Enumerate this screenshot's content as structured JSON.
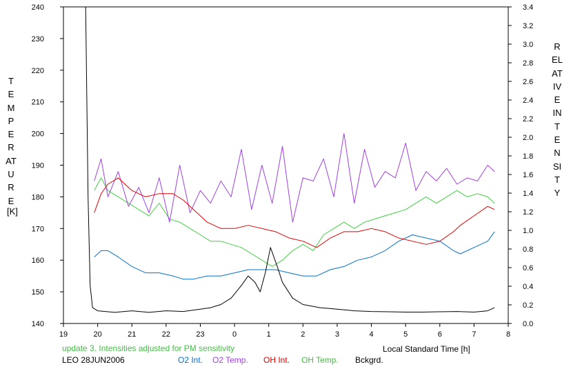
{
  "chart_data": {
    "type": "line",
    "title": "",
    "xlabel": "Local Standard Time [h]",
    "ylabel_left": "TEMPERATURE",
    "ylabel_left_unit": "[K]",
    "ylabel_right": "RELATIVE  INTENSITY",
    "xlim": [
      19,
      32
    ],
    "ylim_left": [
      140,
      240
    ],
    "ylim_right": [
      0.0,
      3.4
    ],
    "x_ticks": [
      "19",
      "20",
      "21",
      "22",
      "23",
      "0",
      "1",
      "2",
      "3",
      "4",
      "5",
      "6",
      "7",
      "8"
    ],
    "y_left_ticks": [
      "140",
      "150",
      "160",
      "170",
      "180",
      "190",
      "200",
      "210",
      "220",
      "230",
      "240"
    ],
    "y_right_ticks": [
      "0.0",
      "0.2",
      "0.4",
      "0.6",
      "0.8",
      "1.0",
      "1.2",
      "1.4",
      "1.6",
      "1.8",
      "2.0",
      "2.2",
      "2.4",
      "2.6",
      "2.8",
      "3.0",
      "3.2",
      "3.4"
    ],
    "grid": false,
    "series": [
      {
        "name": "O2 Int.",
        "color": "#0070d0",
        "axis": "left",
        "x": [
          19.9,
          20.1,
          20.3,
          20.6,
          21.0,
          21.4,
          21.8,
          22.2,
          22.5,
          22.8,
          23.2,
          23.6,
          24.0,
          24.4,
          24.8,
          25.2,
          25.6,
          26.0,
          26.4,
          26.8,
          27.2,
          27.6,
          28.0,
          28.4,
          28.8,
          29.2,
          29.6,
          30.0,
          30.4,
          30.6,
          31.0,
          31.4,
          31.6
        ],
        "y": [
          161,
          163,
          163,
          161,
          158,
          156,
          156,
          155,
          154,
          154,
          155,
          155,
          156,
          157,
          157,
          157,
          156,
          155,
          155,
          157,
          158,
          160,
          161,
          163,
          166,
          168,
          167,
          166,
          163,
          162,
          164,
          166,
          169
        ]
      },
      {
        "name": "O2 Temp.",
        "color": "#a040e0",
        "axis": "left",
        "x": [
          19.9,
          20.1,
          20.3,
          20.6,
          20.9,
          21.2,
          21.5,
          21.8,
          22.1,
          22.4,
          22.7,
          23.0,
          23.3,
          23.6,
          23.9,
          24.2,
          24.5,
          24.8,
          25.1,
          25.4,
          25.7,
          26.0,
          26.3,
          26.6,
          26.9,
          27.2,
          27.5,
          27.8,
          28.1,
          28.4,
          28.7,
          29.0,
          29.3,
          29.6,
          29.9,
          30.2,
          30.5,
          30.8,
          31.1,
          31.4,
          31.6
        ],
        "y": [
          185,
          192,
          180,
          188,
          177,
          183,
          175,
          186,
          172,
          190,
          175,
          182,
          178,
          185,
          180,
          195,
          176,
          190,
          178,
          196,
          172,
          186,
          185,
          192,
          180,
          200,
          178,
          195,
          183,
          188,
          186,
          197,
          182,
          188,
          185,
          189,
          184,
          186,
          185,
          190,
          188
        ]
      },
      {
        "name": "OH Int.",
        "color": "#e00000",
        "axis": "left",
        "x": [
          19.9,
          20.1,
          20.3,
          20.6,
          21.0,
          21.4,
          21.8,
          22.2,
          22.5,
          22.8,
          23.2,
          23.6,
          24.0,
          24.4,
          24.8,
          25.2,
          25.6,
          26.0,
          26.4,
          26.8,
          27.2,
          27.6,
          28.0,
          28.4,
          28.8,
          29.2,
          29.6,
          30.0,
          30.4,
          30.6,
          31.0,
          31.4,
          31.6
        ],
        "y": [
          175,
          181,
          184,
          186,
          182,
          180,
          181,
          181,
          179,
          176,
          172,
          170,
          170,
          171,
          170,
          169,
          167,
          166,
          164,
          167,
          169,
          169,
          170,
          169,
          167,
          166,
          165,
          166,
          169,
          171,
          174,
          177,
          176
        ]
      },
      {
        "name": "OH Temp.",
        "color": "#40d040",
        "axis": "left",
        "x": [
          19.9,
          20.1,
          20.3,
          20.6,
          20.9,
          21.2,
          21.5,
          21.8,
          22.1,
          22.4,
          22.7,
          23.0,
          23.3,
          23.6,
          23.9,
          24.2,
          24.5,
          24.8,
          25.1,
          25.4,
          25.7,
          26.0,
          26.3,
          26.6,
          26.9,
          27.2,
          27.5,
          27.8,
          28.1,
          28.4,
          28.7,
          29.0,
          29.3,
          29.6,
          29.9,
          30.2,
          30.5,
          30.8,
          31.1,
          31.4,
          31.6
        ],
        "y": [
          182,
          186,
          182,
          180,
          178,
          176,
          174,
          178,
          173,
          172,
          170,
          168,
          166,
          166,
          165,
          164,
          162,
          160,
          158,
          160,
          163,
          165,
          163,
          168,
          170,
          172,
          170,
          172,
          173,
          174,
          175,
          176,
          178,
          180,
          178,
          180,
          182,
          180,
          181,
          180,
          178
        ]
      },
      {
        "name": "Bckgrd.",
        "color": "#000000",
        "axis": "left",
        "x": [
          19.65,
          19.72,
          19.78,
          19.85,
          20.0,
          20.5,
          21.0,
          21.5,
          22.0,
          22.5,
          23.0,
          23.3,
          23.6,
          23.9,
          24.2,
          24.4,
          24.6,
          24.75,
          24.9,
          25.05,
          25.25,
          25.4,
          25.7,
          26.0,
          26.5,
          27.0,
          27.5,
          28.0,
          28.5,
          29.0,
          29.5,
          30.0,
          30.5,
          31.0,
          31.4,
          31.6
        ],
        "y": [
          240,
          180,
          152,
          145,
          144,
          143.5,
          144,
          143.5,
          144,
          143.8,
          144.5,
          145,
          146,
          148,
          152,
          155,
          153,
          150,
          156,
          164,
          158,
          153,
          148,
          146,
          145,
          144.5,
          144,
          143.8,
          143.7,
          143.6,
          143.6,
          143.7,
          143.8,
          143.6,
          144,
          145
        ]
      }
    ],
    "annotations": [
      "update 3. Intensities adjusted for PM sensitivity",
      "LEO 28JUN2006"
    ]
  },
  "colors": {
    "note_green": "#40c040",
    "o2_int": "#0070d0",
    "o2_temp": "#a040e0",
    "oh_int": "#e00000",
    "oh_temp": "#40d040",
    "background": "#000000"
  }
}
